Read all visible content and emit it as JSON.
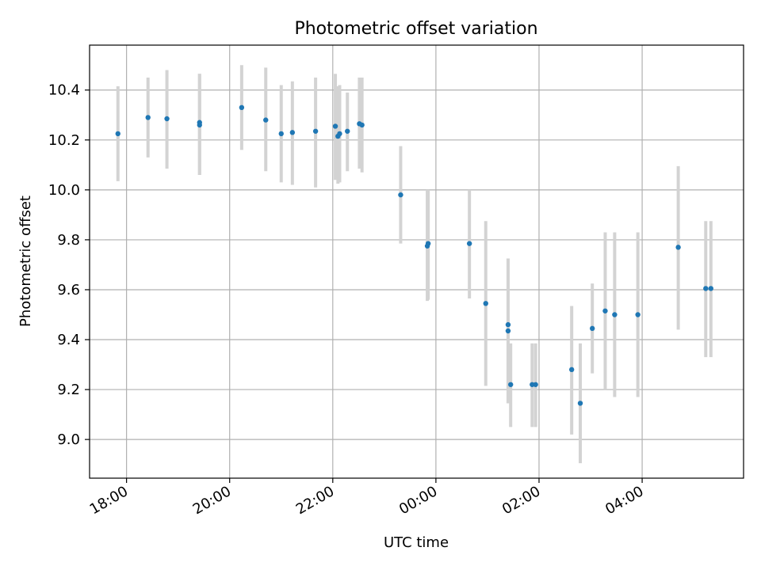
{
  "chart_data": {
    "type": "scatter",
    "title": "Photometric offset variation",
    "xlabel": "UTC time",
    "ylabel": "Photometric offset",
    "grid": true,
    "colors": {
      "marker": "#1f77b4",
      "errorbar": "#d3d3d3",
      "grid": "#b0b0b0"
    },
    "xlim": [
      "2000-01-01T17:17:00",
      "2000-01-02T05:58:00"
    ],
    "ylim": [
      8.845,
      10.58
    ],
    "x_ticks": [
      {
        "t": "2000-01-01T18:00:00",
        "label": "18:00"
      },
      {
        "t": "2000-01-01T20:00:00",
        "label": "20:00"
      },
      {
        "t": "2000-01-01T22:00:00",
        "label": "22:00"
      },
      {
        "t": "2000-01-02T00:00:00",
        "label": "00:00"
      },
      {
        "t": "2000-01-02T02:00:00",
        "label": "02:00"
      },
      {
        "t": "2000-01-02T04:00:00",
        "label": "04:00"
      }
    ],
    "y_ticks": [
      9.0,
      9.2,
      9.4,
      9.6,
      9.8,
      10.0,
      10.2,
      10.4
    ],
    "points": [
      {
        "t": "2000-01-01T17:50:00",
        "y": 10.225,
        "lo": 10.035,
        "hi": 10.415
      },
      {
        "t": "2000-01-01T18:25:00",
        "y": 10.29,
        "lo": 10.13,
        "hi": 10.45
      },
      {
        "t": "2000-01-01T18:47:00",
        "y": 10.285,
        "lo": 10.085,
        "hi": 10.48
      },
      {
        "t": "2000-01-01T19:25:00",
        "y": 10.27,
        "lo": 10.06,
        "hi": 10.465
      },
      {
        "t": "2000-01-01T19:25:00",
        "y": 10.26,
        "lo": 10.06,
        "hi": 10.465
      },
      {
        "t": "2000-01-01T20:14:00",
        "y": 10.33,
        "lo": 10.16,
        "hi": 10.5
      },
      {
        "t": "2000-01-01T20:42:00",
        "y": 10.28,
        "lo": 10.075,
        "hi": 10.49
      },
      {
        "t": "2000-01-01T21:00:00",
        "y": 10.225,
        "lo": 10.03,
        "hi": 10.42
      },
      {
        "t": "2000-01-01T21:13:00",
        "y": 10.23,
        "lo": 10.02,
        "hi": 10.435
      },
      {
        "t": "2000-01-01T21:40:00",
        "y": 10.235,
        "lo": 10.01,
        "hi": 10.45
      },
      {
        "t": "2000-01-01T22:03:00",
        "y": 10.255,
        "lo": 10.04,
        "hi": 10.465
      },
      {
        "t": "2000-01-01T22:06:00",
        "y": 10.215,
        "lo": 10.025,
        "hi": 10.415
      },
      {
        "t": "2000-01-01T22:08:00",
        "y": 10.225,
        "lo": 10.03,
        "hi": 10.42
      },
      {
        "t": "2000-01-01T22:17:00",
        "y": 10.235,
        "lo": 10.075,
        "hi": 10.39
      },
      {
        "t": "2000-01-01T22:31:00",
        "y": 10.265,
        "lo": 10.085,
        "hi": 10.45
      },
      {
        "t": "2000-01-01T22:34:00",
        "y": 10.26,
        "lo": 10.07,
        "hi": 10.45
      },
      {
        "t": "2000-01-01T23:19:00",
        "y": 9.98,
        "lo": 9.785,
        "hi": 10.175
      },
      {
        "t": "2000-01-01T23:50:00",
        "y": 9.775,
        "lo": 9.555,
        "hi": 10.0
      },
      {
        "t": "2000-01-01T23:51:00",
        "y": 9.785,
        "lo": 9.56,
        "hi": 10.0
      },
      {
        "t": "2000-01-02T00:39:00",
        "y": 9.785,
        "lo": 9.565,
        "hi": 10.0
      },
      {
        "t": "2000-01-02T00:58:00",
        "y": 9.545,
        "lo": 9.215,
        "hi": 9.875
      },
      {
        "t": "2000-01-02T01:24:00",
        "y": 9.46,
        "lo": 9.145,
        "hi": 9.725
      },
      {
        "t": "2000-01-02T01:24:00",
        "y": 9.435,
        "lo": 9.145,
        "hi": 9.725
      },
      {
        "t": "2000-01-02T01:27:00",
        "y": 9.22,
        "lo": 9.05,
        "hi": 9.385
      },
      {
        "t": "2000-01-02T01:52:00",
        "y": 9.22,
        "lo": 9.05,
        "hi": 9.385
      },
      {
        "t": "2000-01-02T01:56:00",
        "y": 9.22,
        "lo": 9.05,
        "hi": 9.385
      },
      {
        "t": "2000-01-02T02:38:00",
        "y": 9.28,
        "lo": 9.02,
        "hi": 9.535
      },
      {
        "t": "2000-01-02T02:48:00",
        "y": 9.145,
        "lo": 8.905,
        "hi": 9.385
      },
      {
        "t": "2000-01-02T03:02:00",
        "y": 9.445,
        "lo": 9.265,
        "hi": 9.625
      },
      {
        "t": "2000-01-02T03:17:00",
        "y": 9.515,
        "lo": 9.2,
        "hi": 9.83
      },
      {
        "t": "2000-01-02T03:28:00",
        "y": 9.5,
        "lo": 9.17,
        "hi": 9.83
      },
      {
        "t": "2000-01-02T03:55:00",
        "y": 9.5,
        "lo": 9.17,
        "hi": 9.83
      },
      {
        "t": "2000-01-02T04:42:00",
        "y": 9.77,
        "lo": 9.44,
        "hi": 10.095
      },
      {
        "t": "2000-01-02T05:14:00",
        "y": 9.605,
        "lo": 9.33,
        "hi": 9.875
      },
      {
        "t": "2000-01-02T05:20:00",
        "y": 9.605,
        "lo": 9.33,
        "hi": 9.875
      }
    ]
  }
}
